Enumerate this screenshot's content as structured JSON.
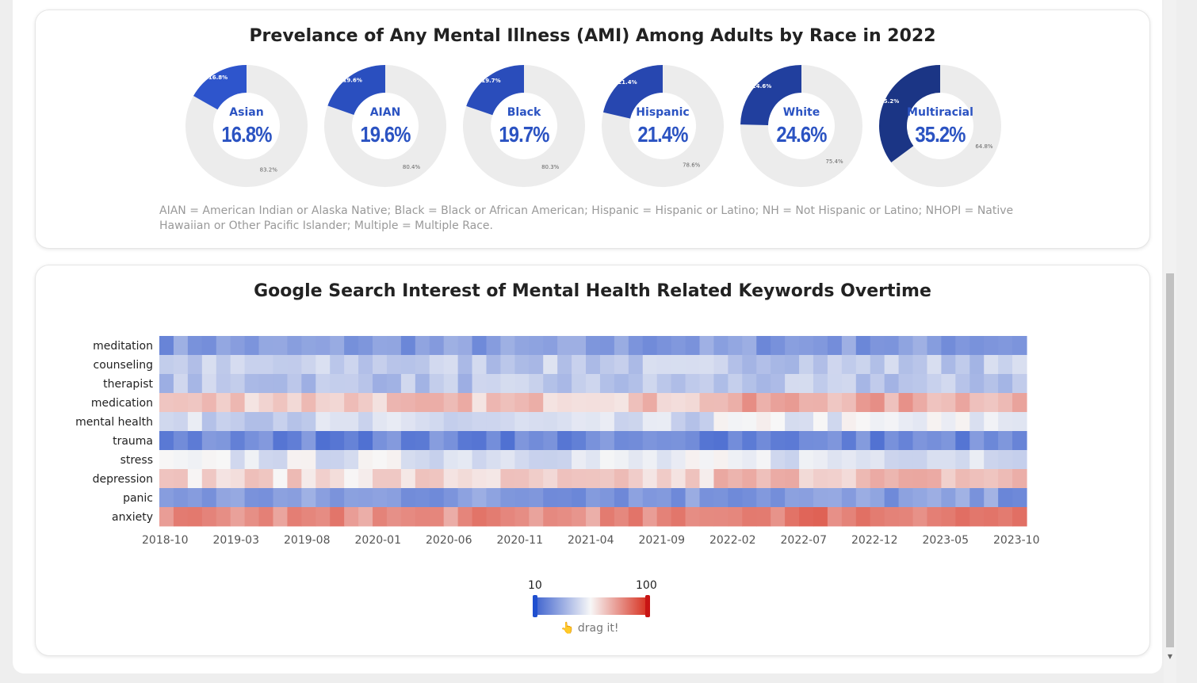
{
  "ami": {
    "title": "Prevelance of Any Mental Illness (AMI) Among Adults by Race in 2022",
    "note": "AIAN = American Indian or Alaska Native; Black = Black or African American; Hispanic = Hispanic or Latino; NH = Not Hispanic or Latino; NHOPI = Native Hawaiian or Other Pacific Islander; Multiple = Multiple Race.",
    "races": [
      {
        "name": "Asian",
        "value": 16.8,
        "label": "16.8%",
        "rest_label": "83.2%",
        "color": "#2e55cc"
      },
      {
        "name": "AIAN",
        "value": 19.6,
        "label": "19.6%",
        "rest_label": "80.4%",
        "color": "#2a4fbf"
      },
      {
        "name": "Black",
        "value": 19.7,
        "label": "19.7%",
        "rest_label": "80.3%",
        "color": "#2a4dbb"
      },
      {
        "name": "Hispanic",
        "value": 21.4,
        "label": "21.4%",
        "rest_label": "78.6%",
        "color": "#2747b0"
      },
      {
        "name": "White",
        "value": 24.6,
        "label": "24.6%",
        "rest_label": "75.4%",
        "color": "#213f9e"
      },
      {
        "name": "Multiracial",
        "value": 35.2,
        "label": "35.2%",
        "rest_label": "64.8%",
        "color": "#1b3585"
      }
    ],
    "rest_color": "#ececec",
    "text_color": "#2b53c2"
  },
  "search": {
    "title": "Google Search Interest of Mental Health Related Keywords Overtime",
    "legend": {
      "min": "10",
      "max": "100",
      "hint": "👆 drag it!",
      "low_color": "#3a5fcd",
      "mid_color": "#f7f7f7",
      "high_color": "#d7301f"
    }
  },
  "chart_data": {
    "type": "heatmap",
    "title": "Google Search Interest of Mental Health Related Keywords Overtime",
    "rows": [
      "meditation",
      "counseling",
      "therapist",
      "medication",
      "mental health",
      "trauma",
      "stress",
      "depression",
      "panic",
      "anxiety"
    ],
    "x_ticks": [
      "2018-10",
      "2019-03",
      "2019-08",
      "2020-01",
      "2020-06",
      "2020-11",
      "2021-04",
      "2021-09",
      "2022-02",
      "2022-07",
      "2022-12",
      "2023-05",
      "2023-10"
    ],
    "x_start": "2018-10",
    "x_end": "2023-10",
    "value_range": [
      10,
      100
    ],
    "colorscale": [
      "#3a5fcd",
      "#f7f7f7",
      "#d7301f"
    ],
    "approx_row_levels": [
      {
        "row": "meditation",
        "level": 28
      },
      {
        "row": "counseling",
        "level": 42
      },
      {
        "row": "therapist",
        "level": 40
      },
      {
        "row": "medication",
        "level": 66
      },
      {
        "row": "mental health",
        "level": 45
      },
      {
        "row": "trauma",
        "level": 22
      },
      {
        "row": "stress",
        "level": 50
      },
      {
        "row": "depression",
        "level": 62
      },
      {
        "row": "panic",
        "level": 28
      },
      {
        "row": "anxiety",
        "level": 78
      }
    ]
  }
}
